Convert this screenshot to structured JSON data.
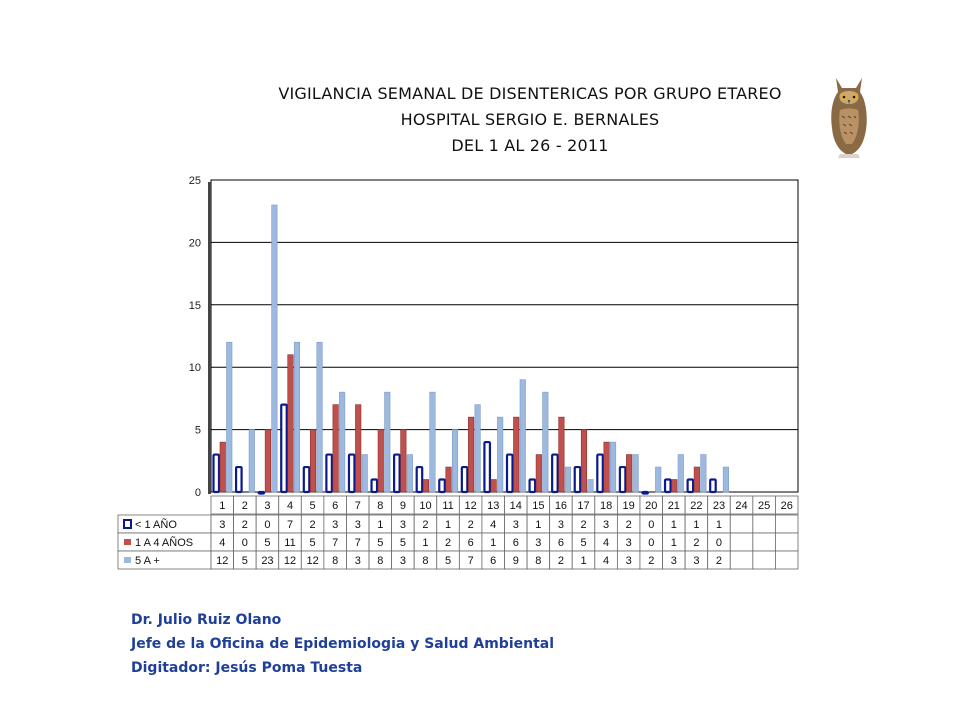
{
  "title_lines": [
    "VIGILANCIA SEMANAL DE DISENTERICAS POR GRUPO ETAREO",
    "HOSPITAL SERGIO E. BERNALES",
    "DEL 1 AL 26 - 2011"
  ],
  "footer": {
    "line1": "Dr.  Julio Ruiz Olano",
    "line2": "Jefe de la Oficina de Epidemiologia y  Salud Ambiental",
    "line3": "Digitador: Jesús Poma Tuesta"
  },
  "logo_icon": "owl-icon",
  "chart_data": {
    "type": "bar",
    "title": "VIGILANCIA SEMANAL DE DISENTERICAS POR GRUPO ETAREO",
    "subtitle": "HOSPITAL SERGIO E. BERNALES / DEL 1 AL 26 - 2011",
    "xlabel": "",
    "ylabel": "",
    "ylim": [
      0,
      25
    ],
    "yticks": [
      "0",
      "5",
      "10",
      "15",
      "20",
      "25"
    ],
    "grid": true,
    "legend": "data-table-left",
    "categories": [
      "1",
      "2",
      "3",
      "4",
      "5",
      "6",
      "7",
      "8",
      "9",
      "10",
      "11",
      "12",
      "13",
      "14",
      "15",
      "16",
      "17",
      "18",
      "19",
      "20",
      "21",
      "22",
      "23",
      "24",
      "25",
      "26"
    ],
    "series": [
      {
        "name": "< 1 AÑO",
        "color": "#0a1a8c",
        "values": [
          3,
          2,
          0,
          7,
          2,
          3,
          3,
          1,
          3,
          2,
          1,
          2,
          4,
          3,
          1,
          3,
          2,
          3,
          2,
          0,
          1,
          1,
          1,
          null,
          null,
          null
        ]
      },
      {
        "name": "1 A 4 AÑOS",
        "color": "#c0504d",
        "values": [
          4,
          0,
          5,
          11,
          5,
          7,
          7,
          5,
          5,
          1,
          2,
          6,
          1,
          6,
          3,
          6,
          5,
          4,
          3,
          0,
          1,
          2,
          0,
          null,
          null,
          null
        ]
      },
      {
        "name": "5 A +",
        "color": "#9db9e0",
        "values": [
          12,
          5,
          23,
          12,
          12,
          8,
          3,
          8,
          3,
          8,
          5,
          7,
          6,
          9,
          8,
          2,
          1,
          4,
          3,
          2,
          3,
          3,
          2,
          null,
          null,
          null
        ]
      }
    ]
  }
}
